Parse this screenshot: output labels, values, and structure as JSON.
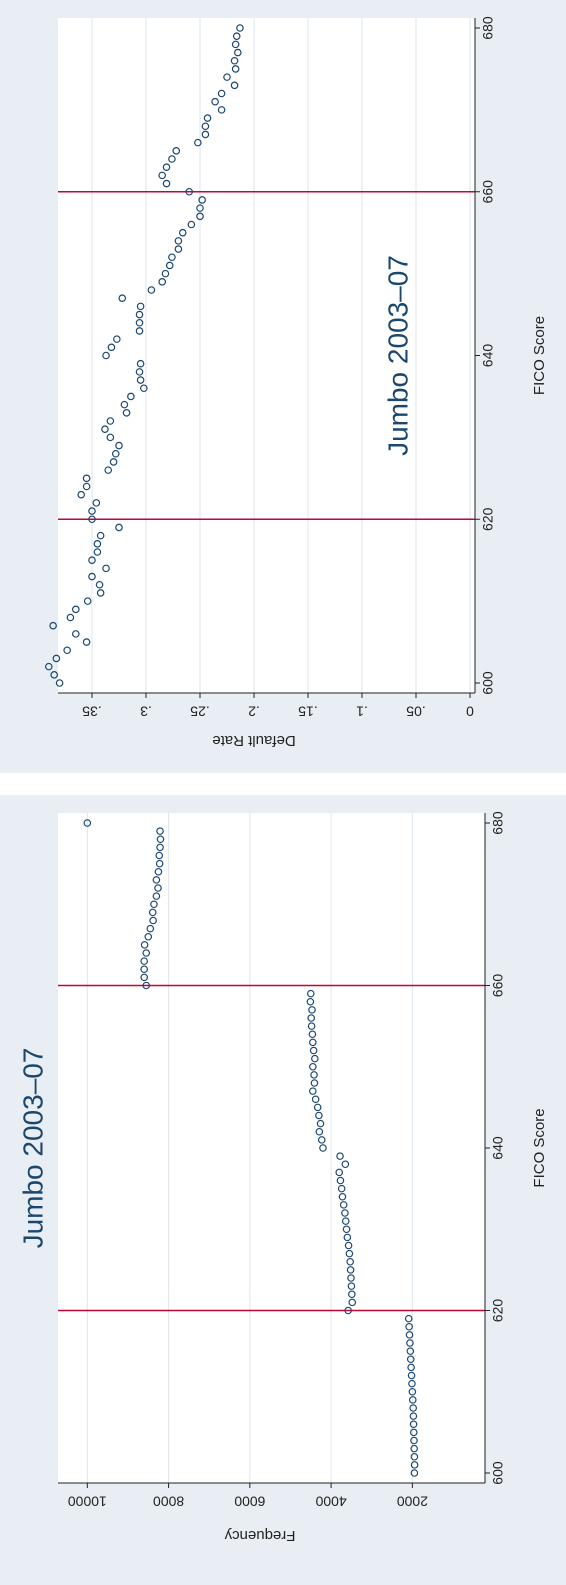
{
  "colors": {
    "panel_bg": "#e8eef3",
    "plot_bg": "#ffffff",
    "grid": "#dde6ec",
    "marker": "#1a476f",
    "refline": "#c10534",
    "title": "#1a476f",
    "text": "#222222"
  },
  "chart_data": [
    {
      "type": "scatter",
      "title": "Jumbo 2003–07",
      "xlabel": "FICO Score",
      "ylabel": "Default Rate",
      "xlim": [
        600,
        680
      ],
      "xticks": [
        "600",
        "620",
        "640",
        "660",
        "680"
      ],
      "ylim": [
        0,
        0.4
      ],
      "yticks": [
        {
          "v": 0,
          "label": "0"
        },
        {
          "v": 0.05,
          "label": ".05"
        },
        {
          "v": 0.1,
          "label": ".1"
        },
        {
          "v": 0.15,
          "label": ".15"
        },
        {
          "v": 0.2,
          "label": ".2"
        },
        {
          "v": 0.25,
          "label": ".25"
        },
        {
          "v": 0.3,
          "label": ".3"
        },
        {
          "v": 0.35,
          "label": ".35"
        }
      ],
      "grid": true,
      "reference_lines_x": [
        620,
        660
      ],
      "orientation": "rotated 90 degrees clockwise",
      "x": [
        600,
        601,
        602,
        603,
        604,
        605,
        606,
        607,
        608,
        609,
        610,
        611,
        612,
        613,
        614,
        615,
        616,
        617,
        618,
        619,
        620,
        621,
        622,
        623,
        624,
        625,
        626,
        627,
        628,
        629,
        630,
        631,
        632,
        633,
        634,
        635,
        636,
        637,
        638,
        639,
        640,
        641,
        642,
        643,
        644,
        645,
        646,
        647,
        648,
        649,
        650,
        651,
        652,
        653,
        654,
        655,
        656,
        657,
        658,
        659,
        660,
        661,
        662,
        663,
        664,
        665,
        666,
        667,
        668,
        669,
        670,
        671,
        672,
        673,
        674,
        675,
        676,
        677,
        678,
        679,
        680
      ],
      "y": [
        0.38,
        0.385,
        0.39,
        0.383,
        0.373,
        0.355,
        0.365,
        0.386,
        0.37,
        0.365,
        0.354,
        0.342,
        0.343,
        0.35,
        0.337,
        0.35,
        0.345,
        0.345,
        0.342,
        0.325,
        0.35,
        0.35,
        0.346,
        0.36,
        0.355,
        0.355,
        0.335,
        0.33,
        0.328,
        0.325,
        0.333,
        0.338,
        0.333,
        0.318,
        0.32,
        0.314,
        0.302,
        0.305,
        0.306,
        0.305,
        0.337,
        0.332,
        0.327,
        0.306,
        0.306,
        0.306,
        0.305,
        0.322,
        0.295,
        0.285,
        0.282,
        0.278,
        0.276,
        0.27,
        0.27,
        0.266,
        0.258,
        0.25,
        0.25,
        0.248,
        0.26,
        0.281,
        0.285,
        0.281,
        0.276,
        0.272,
        0.252,
        0.245,
        0.245,
        0.243,
        0.23,
        0.236,
        0.23,
        0.218,
        0.225,
        0.217,
        0.218,
        0.215,
        0.217,
        0.216,
        0.213
      ]
    },
    {
      "type": "scatter",
      "title": "Jumbo 2003–07",
      "xlabel": "FICO Score",
      "ylabel": "Frequency",
      "xlim": [
        600,
        680
      ],
      "xticks": [
        "600",
        "620",
        "640",
        "660",
        "680"
      ],
      "ylim": [
        1000,
        10500
      ],
      "yticks": [
        {
          "v": 2000,
          "label": "2000"
        },
        {
          "v": 4000,
          "label": "4000"
        },
        {
          "v": 6000,
          "label": "6000"
        },
        {
          "v": 8000,
          "label": "8000"
        },
        {
          "v": 10000,
          "label": "10000"
        }
      ],
      "grid": true,
      "reference_lines_x": [
        620,
        660
      ],
      "orientation": "rotated 90 degrees clockwise",
      "x": [
        600,
        601,
        602,
        603,
        604,
        605,
        606,
        607,
        608,
        609,
        610,
        611,
        612,
        613,
        614,
        615,
        616,
        617,
        618,
        619,
        620,
        621,
        622,
        623,
        624,
        625,
        626,
        627,
        628,
        629,
        630,
        631,
        632,
        633,
        634,
        635,
        636,
        637,
        638,
        639,
        640,
        641,
        642,
        643,
        644,
        645,
        646,
        647,
        648,
        649,
        650,
        651,
        652,
        653,
        654,
        655,
        656,
        657,
        658,
        659,
        660,
        661,
        662,
        663,
        664,
        665,
        666,
        667,
        668,
        669,
        670,
        671,
        672,
        673,
        674,
        675,
        676,
        677,
        678,
        679,
        680
      ],
      "y": [
        1950,
        1945,
        1950,
        1955,
        1960,
        1965,
        1970,
        1975,
        1980,
        1990,
        2000,
        2010,
        2020,
        2030,
        2040,
        2050,
        2060,
        2070,
        2080,
        2090,
        3580,
        3480,
        3490,
        3500,
        3510,
        3520,
        3530,
        3550,
        3570,
        3600,
        3620,
        3640,
        3660,
        3690,
        3720,
        3740,
        3770,
        3800,
        3650,
        3780,
        4200,
        4230,
        4290,
        4260,
        4300,
        4330,
        4380,
        4450,
        4410,
        4420,
        4450,
        4400,
        4430,
        4450,
        4460,
        4480,
        4490,
        4470,
        4510,
        4500,
        8550,
        8600,
        8600,
        8600,
        8550,
        8590,
        8500,
        8450,
        8380,
        8390,
        8360,
        8300,
        8260,
        8300,
        8250,
        8220,
        8230,
        8210,
        8200,
        8210,
        10000
      ]
    }
  ]
}
